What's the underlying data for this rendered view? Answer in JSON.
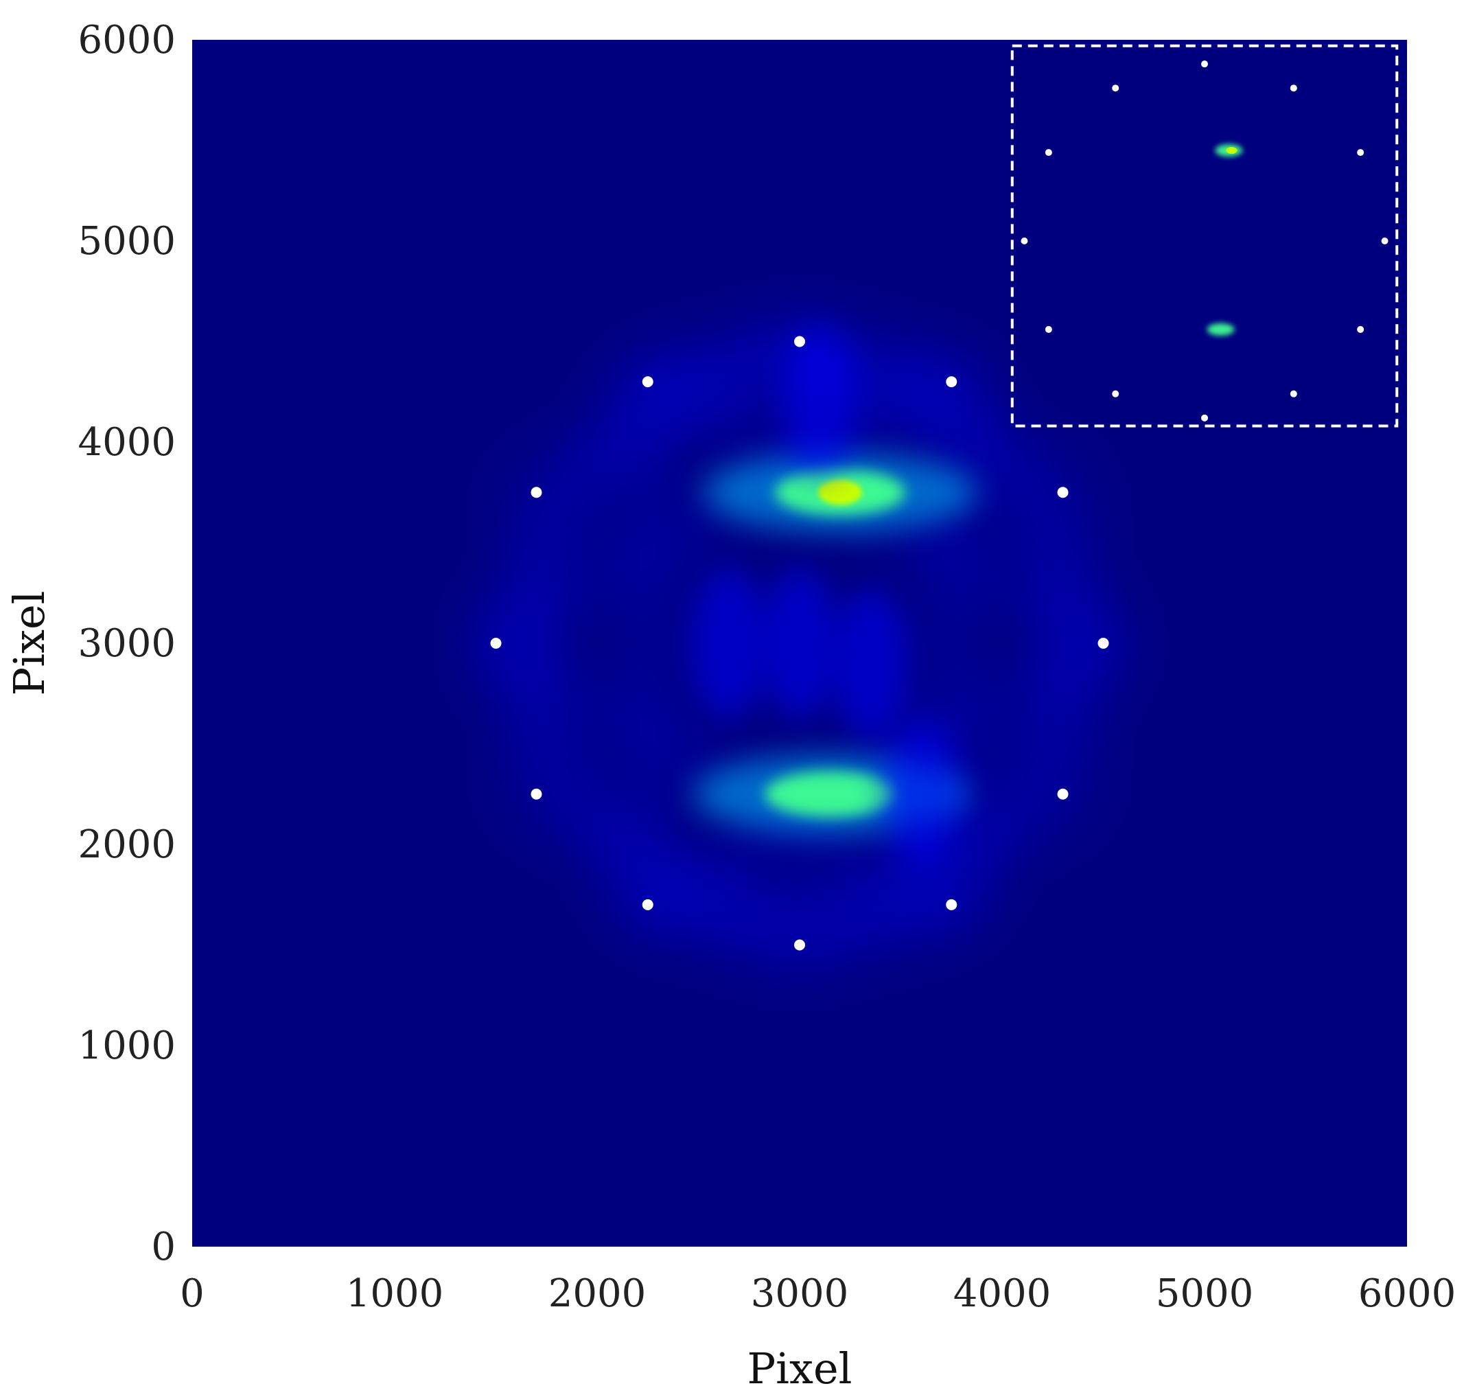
{
  "chart_data": {
    "type": "heatmap",
    "title": "",
    "xlabel": "Pixel",
    "ylabel": "Pixel",
    "xlim": [
      0,
      6000
    ],
    "ylim": [
      0,
      6000
    ],
    "x_ticks": [
      "0",
      "1000",
      "2000",
      "3000",
      "4000",
      "5000",
      "6000"
    ],
    "y_ticks": [
      "0",
      "1000",
      "2000",
      "3000",
      "4000",
      "5000",
      "6000"
    ],
    "grid": false,
    "legend": "none",
    "colors": {
      "background": "#00007f",
      "low": "#0000ff",
      "mid": "#00c0ff",
      "high": "#40ff90",
      "peak": "#c8ff00",
      "markers": "#ffffff",
      "inset_border": "#ffffff"
    },
    "markers": [
      {
        "x": 3000,
        "y": 4500
      },
      {
        "x": 2250,
        "y": 4300
      },
      {
        "x": 3750,
        "y": 4300
      },
      {
        "x": 1700,
        "y": 3750
      },
      {
        "x": 4300,
        "y": 3750
      },
      {
        "x": 1500,
        "y": 3000
      },
      {
        "x": 4500,
        "y": 3000
      },
      {
        "x": 1700,
        "y": 2250
      },
      {
        "x": 4300,
        "y": 2250
      },
      {
        "x": 2250,
        "y": 1700
      },
      {
        "x": 3750,
        "y": 1700
      },
      {
        "x": 3000,
        "y": 1500
      }
    ],
    "intensity_blobs": [
      {
        "x": 3200,
        "y": 3750,
        "level": "peak"
      },
      {
        "x": 3150,
        "y": 2250,
        "level": "high"
      },
      {
        "x": 3000,
        "y": 3000,
        "level": "low"
      },
      {
        "x": 3350,
        "y": 2900,
        "level": "low"
      },
      {
        "x": 2650,
        "y": 3000,
        "level": "low"
      },
      {
        "x": 3100,
        "y": 4200,
        "level": "low"
      },
      {
        "x": 3600,
        "y": 2250,
        "level": "low"
      }
    ],
    "inset": {
      "x_range": [
        4050,
        5950
      ],
      "y_range": [
        4080,
        5970
      ],
      "border": "dashed",
      "markers": [
        {
          "x": 5000,
          "y": 5880
        },
        {
          "x": 4560,
          "y": 5760
        },
        {
          "x": 5440,
          "y": 5760
        },
        {
          "x": 4230,
          "y": 5440
        },
        {
          "x": 5770,
          "y": 5440
        },
        {
          "x": 4110,
          "y": 5000
        },
        {
          "x": 5890,
          "y": 5000
        },
        {
          "x": 4230,
          "y": 4560
        },
        {
          "x": 5770,
          "y": 4560
        },
        {
          "x": 4560,
          "y": 4240
        },
        {
          "x": 5440,
          "y": 4240
        },
        {
          "x": 5000,
          "y": 4120
        }
      ],
      "blobs": [
        {
          "x": 5120,
          "y": 5450,
          "level": "peak"
        },
        {
          "x": 5080,
          "y": 4560,
          "level": "high"
        }
      ]
    }
  }
}
